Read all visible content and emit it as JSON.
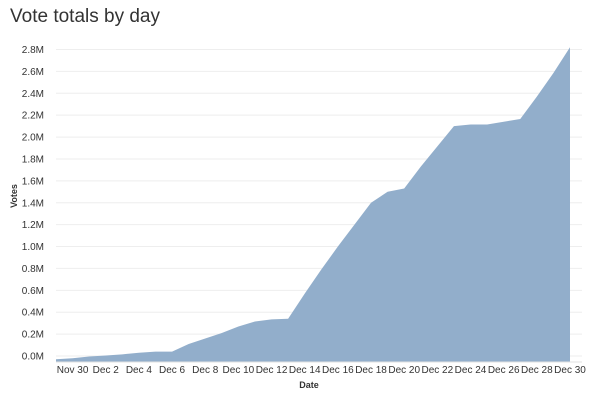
{
  "chart_data": {
    "type": "area",
    "title": "Vote totals by day",
    "xlabel": "Date",
    "ylabel": "Votes",
    "y_tick_labels": [
      "0.0M",
      "0.2M",
      "0.4M",
      "0.6M",
      "0.8M",
      "1.0M",
      "1.2M",
      "1.4M",
      "1.6M",
      "1.8M",
      "2.0M",
      "2.2M",
      "2.4M",
      "2.6M",
      "2.8M"
    ],
    "y_ticks": [
      0,
      200000,
      400000,
      600000,
      800000,
      1000000,
      1200000,
      1400000,
      1600000,
      1800000,
      2000000,
      2200000,
      2400000,
      2600000,
      2800000
    ],
    "ylim": [
      -50000,
      2840000
    ],
    "x_tick_labels": [
      "Nov 30",
      "Dec 2",
      "Dec 4",
      "Dec 6",
      "Dec 8",
      "Dec 10",
      "Dec 12",
      "Dec 14",
      "Dec 16",
      "Dec 18",
      "Dec 20",
      "Dec 22",
      "Dec 24",
      "Dec 26",
      "Dec 28",
      "Dec 30"
    ],
    "x": [
      "Nov 29",
      "Nov 30",
      "Dec 1",
      "Dec 2",
      "Dec 3",
      "Dec 4",
      "Dec 5",
      "Dec 6",
      "Dec 7",
      "Dec 8",
      "Dec 9",
      "Dec 10",
      "Dec 11",
      "Dec 12",
      "Dec 13",
      "Dec 14",
      "Dec 15",
      "Dec 16",
      "Dec 17",
      "Dec 18",
      "Dec 19",
      "Dec 20",
      "Dec 21",
      "Dec 22",
      "Dec 23",
      "Dec 24",
      "Dec 25",
      "Dec 26",
      "Dec 27",
      "Dec 28",
      "Dec 29",
      "Dec 30"
    ],
    "series": [
      {
        "color": "#92aecb",
        "values": [
          -30000,
          -20000,
          -5000,
          5000,
          15000,
          30000,
          40000,
          40000,
          110000,
          160000,
          210000,
          270000,
          315000,
          335000,
          340000,
          570000,
          790000,
          1000000,
          1200000,
          1400000,
          1500000,
          1530000,
          1730000,
          1915000,
          2100000,
          2115000,
          2115000,
          2140000,
          2165000,
          2370000,
          2585000,
          2820000
        ]
      }
    ],
    "grid": "horizontal",
    "legend": "none"
  }
}
